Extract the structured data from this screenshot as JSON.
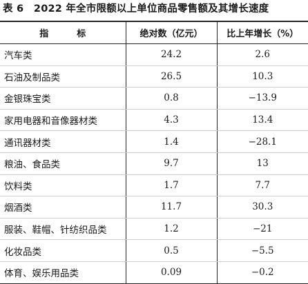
{
  "table": {
    "title": "表 6　2022 年全市限额以上单位商品零售额及其增长速度",
    "headers": [
      "指　标",
      "绝对数（亿元）",
      "比上年增长（%）"
    ],
    "rows": [
      {
        "name": "汽车类",
        "value": "24.2",
        "growth": "2.6"
      },
      {
        "name": "石油及制品类",
        "value": "26.5",
        "growth": "10.3"
      },
      {
        "name": "金银珠宝类",
        "value": "0.8",
        "growth": "−13.9"
      },
      {
        "name": "家用电器和音像器材类",
        "value": "4.3",
        "growth": "13.4"
      },
      {
        "name": "通讯器材类",
        "value": "1.4",
        "growth": "−28.1"
      },
      {
        "name": "粮油、食品类",
        "value": "9.7",
        "growth": "13"
      },
      {
        "name": "饮料类",
        "value": "1.7",
        "growth": "7.7"
      },
      {
        "name": "烟酒类",
        "value": "11.7",
        "growth": "30.3"
      },
      {
        "name": "服装、鞋帽、针纺织品类",
        "value": "1.2",
        "growth": "−21"
      },
      {
        "name": "化妆品类",
        "value": "0.5",
        "growth": "−5.5"
      },
      {
        "name": "体育、娱乐用品类",
        "value": "0.09",
        "growth": "−0.2"
      }
    ]
  }
}
